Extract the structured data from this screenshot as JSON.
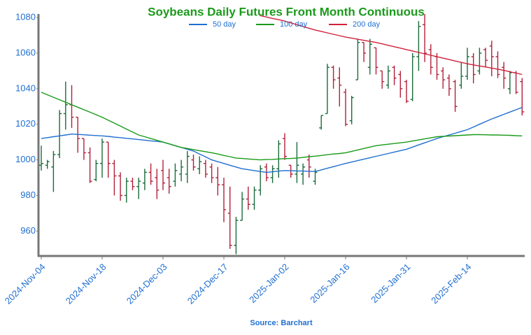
{
  "chart_data": {
    "type": "ohlc",
    "title": "Soybeans Daily Futures Front Month Continuous",
    "source": "Source: Barchart",
    "categories": [
      "2024-Nov-04",
      null,
      null,
      null,
      null,
      null,
      null,
      null,
      null,
      null,
      "2024-Nov-18",
      null,
      null,
      null,
      null,
      null,
      null,
      null,
      null,
      null,
      "2024-Dec-03",
      null,
      null,
      null,
      null,
      null,
      null,
      null,
      null,
      null,
      "2024-Dec-17",
      null,
      null,
      null,
      null,
      null,
      null,
      null,
      null,
      null,
      "2025-Jan-02",
      null,
      null,
      null,
      null,
      null,
      null,
      null,
      null,
      null,
      "2025-Jan-16",
      null,
      null,
      null,
      null,
      null,
      null,
      null,
      null,
      null,
      "2025-Jan-31",
      null,
      null,
      null,
      null,
      null,
      null,
      null,
      null,
      null,
      "2025-Feb-14",
      null,
      null,
      null,
      null,
      null,
      null,
      null,
      null,
      null
    ],
    "open": [
      997,
      997,
      996,
      1003,
      1026,
      1031,
      1024,
      1012,
      1004,
      989,
      998,
      1010,
      998,
      991,
      980,
      988,
      985,
      987,
      993,
      990,
      994,
      990,
      988,
      992,
      992,
      1000,
      995,
      998,
      996,
      990,
      986,
      970,
      952,
      966,
      978,
      975,
      983,
      996,
      990,
      995,
      1012,
      997,
      992,
      992,
      1000,
      988,
      1018,
      1026,
      1052,
      1046,
      1038,
      1022,
      1045,
      1066,
      1052,
      1063,
      1050,
      1042,
      1052,
      1048,
      1044,
      1034,
      1058,
      1076,
      1062,
      1058,
      1050,
      1046,
      1044,
      1042,
      1047,
      1058,
      1050,
      1062,
      1064,
      1058,
      1052,
      1040,
      1049,
      1044
    ],
    "high": [
      1008,
      1000,
      1005,
      1028,
      1044,
      1042,
      1024,
      1012,
      1007,
      1000,
      1012,
      1010,
      1000,
      993,
      990,
      990,
      990,
      995,
      998,
      995,
      1000,
      995,
      998,
      1000,
      1005,
      1003,
      1002,
      1000,
      998,
      996,
      990,
      985,
      968,
      982,
      985,
      985,
      997,
      998,
      997,
      1011,
      1015,
      997,
      1010,
      998,
      1003,
      995,
      1025,
      1054,
      1053,
      1052,
      1040,
      1036,
      1068,
      1066,
      1068,
      1063,
      1050,
      1053,
      1053,
      1050,
      1045,
      1060,
      1078,
      1082,
      1065,
      1060,
      1052,
      1048,
      1045,
      1055,
      1063,
      1060,
      1063,
      1063,
      1067,
      1061,
      1055,
      1050,
      1050,
      1046
    ],
    "low": [
      994,
      995,
      982,
      1001,
      1017,
      1018,
      1004,
      1000,
      987,
      988,
      990,
      990,
      980,
      977,
      976,
      983,
      978,
      983,
      986,
      978,
      983,
      981,
      985,
      988,
      987,
      994,
      992,
      990,
      987,
      980,
      965,
      950,
      947,
      966,
      972,
      972,
      980,
      988,
      987,
      990,
      1000,
      990,
      987,
      986,
      990,
      986,
      1017,
      1026,
      1040,
      1030,
      1019,
      1020,
      1045,
      1055,
      1048,
      1048,
      1040,
      1040,
      1042,
      1035,
      1032,
      1033,
      1050,
      1055,
      1048,
      1045,
      1040,
      1036,
      1027,
      1040,
      1045,
      1043,
      1048,
      1052,
      1047,
      1046,
      1040,
      1037,
      1037,
      1025
    ],
    "close": [
      998,
      999,
      1003,
      1026,
      1031,
      1024,
      1012,
      1004,
      988,
      998,
      1010,
      998,
      991,
      980,
      988,
      985,
      988,
      993,
      988,
      983,
      987,
      985,
      994,
      996,
      1002,
      996,
      999,
      992,
      990,
      986,
      972,
      952,
      966,
      978,
      975,
      983,
      995,
      990,
      995,
      1009,
      1002,
      992,
      997,
      996,
      996,
      993,
      1025,
      1052,
      1045,
      1042,
      1020,
      1035,
      1066,
      1060,
      1065,
      1052,
      1044,
      1050,
      1046,
      1040,
      1033,
      1058,
      1075,
      1060,
      1052,
      1048,
      1045,
      1040,
      1030,
      1047,
      1058,
      1048,
      1060,
      1056,
      1058,
      1048,
      1046,
      1049,
      1038,
      1027
    ],
    "up_color": "#1b6b3a",
    "down_color": "#b3203a",
    "series": [
      {
        "name": "50 day",
        "color": "#1f6fd1",
        "values": [
          1012,
          1012.5,
          1013,
          1013.5,
          1014,
          1014.5,
          1014.3,
          1014.1,
          1013.9,
          1013.7,
          1013.5,
          1013.2,
          1012.8,
          1012.5,
          1012.1,
          1011.8,
          1011.4,
          1011.1,
          1010.7,
          1010.4,
          1010,
          1009,
          1008,
          1007,
          1006,
          1005,
          1003.3,
          1001.7,
          1000,
          999,
          998,
          997,
          996,
          995,
          994.5,
          994,
          993.5,
          993,
          993.3,
          993.7,
          994,
          993.9,
          993.8,
          993.7,
          993.6,
          993.5,
          994.4,
          995.3,
          996.2,
          997.1,
          998,
          998.8,
          999.6,
          1000.4,
          1001.2,
          1002,
          1002.8,
          1003.6,
          1004.4,
          1005.2,
          1006,
          1007.2,
          1008.4,
          1009.6,
          1010.8,
          1012,
          1013,
          1014,
          1015,
          1016,
          1017,
          1018.5,
          1020,
          1021.5,
          1023,
          1024.3,
          1025.6,
          1026.9,
          1028.2,
          1029.5
        ]
      },
      {
        "name": "100 day",
        "color": "#1a9a1a",
        "values": [
          1038,
          1036.6,
          1035.2,
          1033.8,
          1032.4,
          1031,
          1029.6,
          1028.2,
          1026.8,
          1025.4,
          1024,
          1022.3,
          1020.7,
          1019,
          1017.3,
          1015.7,
          1014,
          1013,
          1012,
          1011,
          1010,
          1009,
          1008,
          1007,
          1006.4,
          1005.8,
          1005.2,
          1004.6,
          1004,
          1003.3,
          1002.5,
          1001.8,
          1001,
          1000.8,
          1000.5,
          1000.3,
          1000,
          1000.2,
          1000.3,
          1000.5,
          1000.7,
          1000.8,
          1001,
          1001.4,
          1001.8,
          1002.1,
          1002.5,
          1002.9,
          1003.3,
          1003.6,
          1004,
          1004.8,
          1005.6,
          1006.4,
          1007.2,
          1008,
          1008.4,
          1008.8,
          1009.2,
          1009.6,
          1010,
          1010.6,
          1011.2,
          1011.8,
          1012.4,
          1013,
          1013.2,
          1013.4,
          1013.6,
          1013.8,
          1014,
          1014.2,
          1014.2,
          1014.1,
          1014,
          1014,
          1013.9,
          1013.8,
          1013.6,
          1013.5
        ]
      },
      {
        "name": "200 day",
        "color": "#d0203a",
        "values": [
          null,
          null,
          null,
          null,
          null,
          null,
          null,
          null,
          null,
          null,
          null,
          null,
          null,
          null,
          null,
          null,
          null,
          null,
          null,
          null,
          null,
          null,
          null,
          null,
          null,
          null,
          null,
          null,
          null,
          null,
          null,
          null,
          null,
          null,
          null,
          null,
          1081,
          1080.3,
          1079.5,
          1078.8,
          1078,
          1077,
          1076,
          1075,
          1074,
          1073,
          1072.2,
          1071.4,
          1070.6,
          1069.8,
          1069,
          1068.4,
          1067.8,
          1067.2,
          1066.6,
          1066,
          1065.2,
          1064.4,
          1063.6,
          1062.8,
          1062,
          1061.2,
          1060.4,
          1059.6,
          1058.8,
          1058,
          1057.2,
          1056.4,
          1055.6,
          1054.8,
          1054,
          1053.4,
          1052.8,
          1052.2,
          1051.6,
          1051,
          1050.3,
          1049.5,
          1048.8,
          1048
        ]
      }
    ],
    "ylim": [
      946,
      1082
    ],
    "yticks": [
      960,
      980,
      1000,
      1020,
      1040,
      1060,
      1080
    ],
    "grid": false,
    "legend": "top"
  }
}
